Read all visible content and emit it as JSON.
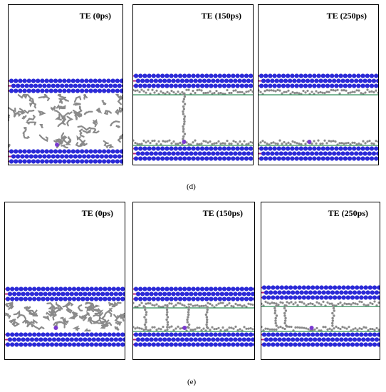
{
  "figure": {
    "rows": [
      {
        "caption": "(d)",
        "panels": [
          {
            "title": "TE (0ps)",
            "state": "liquid-filled"
          },
          {
            "title": "TE (150ps)",
            "state": "stretching-bridge"
          },
          {
            "title": "TE (250ps)",
            "state": "separated"
          }
        ]
      },
      {
        "caption": "(e)",
        "panels": [
          {
            "title": "TE (0ps)",
            "state": "liquid-filled"
          },
          {
            "title": "TE (150ps)",
            "state": "multiple-bridges"
          },
          {
            "title": "TE (250ps)",
            "state": "partially-separated"
          }
        ]
      }
    ],
    "colors": {
      "atom_blue": "#2a2ad8",
      "atom_magenta": "#b0207a",
      "lubricant_gray": "#8a8a8a",
      "surface_green": "#2e8b57"
    }
  }
}
